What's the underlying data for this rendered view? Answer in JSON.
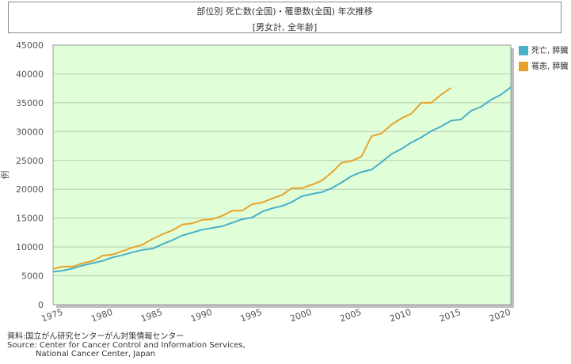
{
  "chart_data": {
    "type": "line",
    "title": "部位別 死亡数(全国)・罹患数(全国) 年次推移",
    "subtitle": "[男女計, 全年齢]",
    "xlabel": "",
    "ylabel": "例",
    "xlim": [
      1975,
      2021
    ],
    "ylim": [
      0,
      45000
    ],
    "xticks": [
      "1975",
      "1980",
      "1985",
      "1990",
      "1995",
      "2000",
      "2005",
      "2010",
      "2015",
      "2020"
    ],
    "yticks": [
      "0",
      "5000",
      "10000",
      "15000",
      "20000",
      "25000",
      "30000",
      "35000",
      "40000",
      "45000"
    ],
    "grid": true,
    "legend_position": "right",
    "series": [
      {
        "name": "死亡, 膵臓",
        "color": "#4aafc8",
        "x": [
          1975,
          1976,
          1977,
          1978,
          1979,
          1980,
          1981,
          1982,
          1983,
          1984,
          1985,
          1986,
          1987,
          1988,
          1989,
          1990,
          1991,
          1992,
          1993,
          1994,
          1995,
          1996,
          1997,
          1998,
          1999,
          2000,
          2001,
          2002,
          2003,
          2004,
          2005,
          2006,
          2007,
          2008,
          2009,
          2010,
          2011,
          2012,
          2013,
          2014,
          2015,
          2016,
          2017,
          2018,
          2019,
          2020,
          2021
        ],
        "y": [
          5700,
          5900,
          6300,
          6800,
          7200,
          7600,
          8200,
          8600,
          9100,
          9500,
          9700,
          10500,
          11200,
          12000,
          12500,
          13000,
          13300,
          13600,
          14200,
          14800,
          15100,
          16100,
          16700,
          17100,
          17800,
          18800,
          19200,
          19500,
          20200,
          21200,
          22300,
          23000,
          23400,
          24700,
          26100,
          27000,
          28100,
          29000,
          30100,
          30900,
          31900,
          32100,
          33600,
          34300,
          35500,
          36400,
          37700
        ]
      },
      {
        "name": "罹患, 膵臓",
        "color": "#e8a22a",
        "x": [
          1975,
          1976,
          1977,
          1978,
          1979,
          1980,
          1981,
          1982,
          1983,
          1984,
          1985,
          1986,
          1987,
          1988,
          1989,
          1990,
          1991,
          1992,
          1993,
          1994,
          1995,
          1996,
          1997,
          1998,
          1999,
          2000,
          2001,
          2002,
          2003,
          2004,
          2005,
          2006,
          2007,
          2008,
          2009,
          2010,
          2011,
          2012,
          2013,
          2014,
          2015
        ],
        "y": [
          6200,
          6600,
          6600,
          7200,
          7600,
          8500,
          8700,
          9300,
          9900,
          10400,
          11400,
          12200,
          12900,
          13900,
          14100,
          14700,
          14800,
          15400,
          16300,
          16300,
          17400,
          17700,
          18400,
          19000,
          20200,
          20200,
          20800,
          21500,
          22900,
          24600,
          24900,
          25700,
          29200,
          29700,
          31200,
          32300,
          33100,
          35000,
          35000,
          36400,
          37600
        ]
      }
    ]
  },
  "source": {
    "line1": "資料:国立がん研究センターがん対策情報センター",
    "line2": "Source: Center for Cancer Control and Information Services,",
    "line3": "National Cancer Center, Japan"
  }
}
